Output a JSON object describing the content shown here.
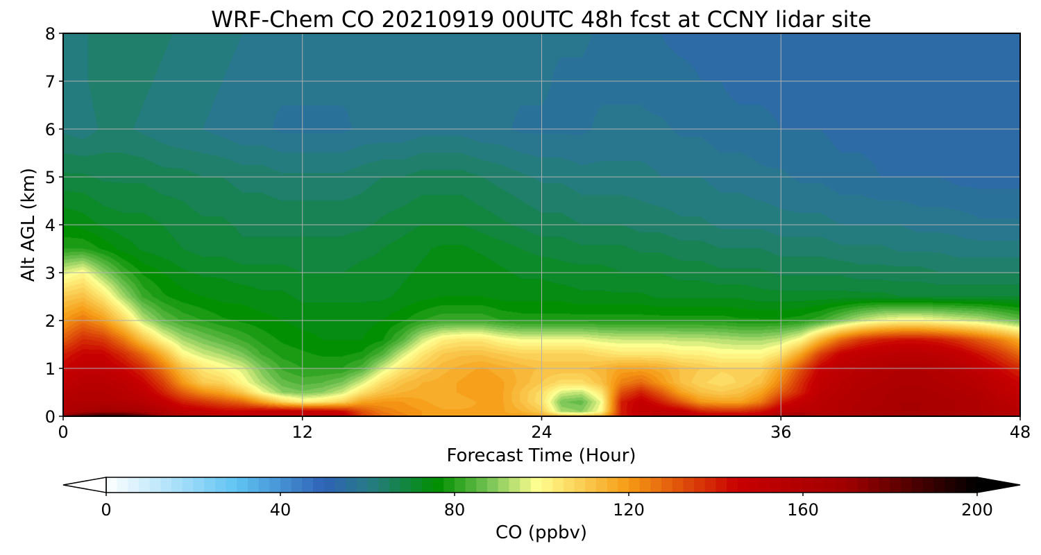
{
  "chart_data": {
    "type": "heatmap",
    "title": "WRF-Chem CO  20210919 00UTC 48h fcst at CCNY lidar site",
    "xlabel": "Forecast Time (Hour)",
    "ylabel": "Alt AGL (km)",
    "xlim": [
      0,
      48
    ],
    "ylim": [
      0,
      8
    ],
    "xticks": [
      0,
      12,
      24,
      36,
      48
    ],
    "yticks": [
      0,
      1,
      2,
      3,
      4,
      5,
      6,
      7,
      8
    ],
    "grid": true,
    "colorbar": {
      "label": "CO  (ppbv)",
      "range": [
        0,
        200
      ],
      "ticks": [
        0,
        40,
        80,
        120,
        160,
        200
      ],
      "extend": "both",
      "levels": 80,
      "colors": [
        {
          "v": 0,
          "c": "#ffffff"
        },
        {
          "v": 30,
          "c": "#5fc3f3"
        },
        {
          "v": 50,
          "c": "#2e62b5"
        },
        {
          "v": 60,
          "c": "#287a8a"
        },
        {
          "v": 76,
          "c": "#008f00"
        },
        {
          "v": 88,
          "c": "#77c455"
        },
        {
          "v": 99,
          "c": "#ffff90"
        },
        {
          "v": 120,
          "c": "#f59a14"
        },
        {
          "v": 145,
          "c": "#c80000"
        },
        {
          "v": 170,
          "c": "#a00000"
        },
        {
          "v": 200,
          "c": "#000000"
        }
      ]
    },
    "z_unit": "ppbv",
    "x": [
      0,
      1,
      2,
      3,
      4,
      5,
      6,
      7,
      8,
      9,
      10,
      11,
      12,
      13,
      14,
      15,
      16,
      17,
      18,
      19,
      20,
      21,
      22,
      23,
      24,
      25,
      26,
      27,
      28,
      29,
      30,
      31,
      32,
      33,
      34,
      35,
      36,
      37,
      38,
      39,
      40,
      41,
      42,
      43,
      44,
      45,
      46,
      47,
      48
    ],
    "y": [
      0,
      0.1,
      0.3,
      0.5,
      0.7,
      1.0,
      1.3,
      1.6,
      2.0,
      2.5,
      3.0,
      3.5,
      4.0,
      5.0,
      6.0,
      7.0,
      8.0
    ],
    "z": [
      [
        175,
        188,
        195,
        193,
        185,
        170,
        160,
        160,
        150,
        148,
        150,
        150,
        150,
        150,
        150,
        135,
        128,
        124,
        120,
        120,
        120,
        118,
        118,
        120,
        118,
        113,
        112,
        115,
        140,
        148,
        152,
        152,
        148,
        148,
        148,
        150,
        170,
        175,
        160,
        162,
        165,
        168,
        170,
        170,
        168,
        166,
        162,
        160,
        158
      ],
      [
        160,
        165,
        168,
        168,
        165,
        158,
        150,
        148,
        145,
        145,
        148,
        148,
        148,
        146,
        144,
        132,
        125,
        122,
        120,
        118,
        118,
        118,
        118,
        115,
        110,
        92,
        90,
        100,
        140,
        150,
        150,
        148,
        140,
        138,
        138,
        142,
        150,
        155,
        155,
        158,
        162,
        164,
        165,
        165,
        164,
        162,
        160,
        158,
        156
      ],
      [
        158,
        160,
        160,
        158,
        155,
        148,
        140,
        136,
        132,
        128,
        118,
        108,
        102,
        104,
        108,
        118,
        120,
        120,
        118,
        116,
        116,
        118,
        118,
        112,
        105,
        88,
        86,
        98,
        140,
        148,
        140,
        130,
        120,
        118,
        118,
        125,
        140,
        148,
        155,
        158,
        160,
        162,
        165,
        165,
        164,
        162,
        160,
        156,
        152
      ],
      [
        155,
        158,
        158,
        155,
        150,
        140,
        130,
        122,
        118,
        110,
        98,
        90,
        88,
        90,
        95,
        105,
        112,
        115,
        116,
        116,
        118,
        120,
        118,
        112,
        106,
        96,
        94,
        104,
        132,
        140,
        130,
        118,
        112,
        110,
        112,
        118,
        130,
        140,
        152,
        156,
        160,
        162,
        164,
        164,
        162,
        160,
        158,
        152,
        148
      ],
      [
        150,
        155,
        155,
        152,
        145,
        135,
        120,
        110,
        108,
        100,
        92,
        86,
        84,
        85,
        88,
        96,
        106,
        112,
        115,
        116,
        118,
        120,
        118,
        114,
        110,
        106,
        106,
        112,
        124,
        128,
        120,
        112,
        108,
        106,
        108,
        112,
        124,
        138,
        150,
        155,
        158,
        160,
        162,
        162,
        160,
        158,
        155,
        150,
        145
      ],
      [
        145,
        150,
        150,
        145,
        138,
        126,
        112,
        104,
        100,
        96,
        88,
        82,
        80,
        80,
        80,
        84,
        95,
        104,
        110,
        114,
        116,
        118,
        116,
        114,
        112,
        112,
        112,
        114,
        118,
        118,
        116,
        112,
        110,
        108,
        108,
        108,
        118,
        132,
        146,
        152,
        156,
        158,
        160,
        160,
        158,
        155,
        150,
        144,
        138
      ],
      [
        140,
        145,
        145,
        138,
        128,
        115,
        100,
        95,
        92,
        88,
        82,
        79,
        78,
        77,
        77,
        78,
        84,
        95,
        104,
        110,
        112,
        112,
        110,
        108,
        108,
        108,
        108,
        106,
        104,
        104,
        104,
        102,
        102,
        100,
        100,
        100,
        105,
        118,
        135,
        146,
        150,
        152,
        154,
        154,
        152,
        148,
        142,
        136,
        128
      ],
      [
        130,
        138,
        136,
        126,
        112,
        100,
        92,
        88,
        85,
        82,
        79,
        77,
        76,
        75,
        75,
        75,
        77,
        84,
        95,
        102,
        104,
        104,
        100,
        98,
        98,
        98,
        98,
        96,
        95,
        95,
        95,
        94,
        94,
        93,
        92,
        92,
        94,
        100,
        115,
        128,
        136,
        140,
        142,
        142,
        140,
        136,
        130,
        124,
        116
      ],
      [
        120,
        126,
        120,
        108,
        94,
        86,
        82,
        80,
        78,
        77,
        76,
        75,
        74,
        74,
        74,
        74,
        75,
        77,
        80,
        82,
        82,
        82,
        80,
        79,
        79,
        79,
        79,
        79,
        79,
        79,
        79,
        79,
        79,
        79,
        78,
        78,
        78,
        79,
        82,
        88,
        94,
        98,
        100,
        100,
        98,
        96,
        94,
        90,
        86
      ],
      [
        110,
        112,
        104,
        92,
        82,
        78,
        76,
        75,
        74,
        74,
        73,
        73,
        72,
        72,
        72,
        72,
        72,
        73,
        74,
        75,
        75,
        75,
        74,
        74,
        74,
        74,
        73,
        73,
        73,
        73,
        72,
        72,
        72,
        72,
        72,
        71,
        71,
        71,
        71,
        71,
        71,
        71,
        70,
        70,
        70,
        70,
        70,
        70,
        70
      ],
      [
        96,
        100,
        90,
        82,
        77,
        75,
        73,
        72,
        72,
        71,
        71,
        71,
        70,
        70,
        70,
        71,
        71,
        72,
        73,
        74,
        74,
        74,
        73,
        72,
        72,
        71,
        71,
        71,
        70,
        70,
        70,
        69,
        69,
        68,
        68,
        68,
        67,
        67,
        67,
        67,
        66,
        66,
        66,
        66,
        65,
        65,
        65,
        65,
        65
      ],
      [
        80,
        80,
        77,
        74,
        72,
        71,
        70,
        69,
        69,
        68,
        68,
        68,
        68,
        68,
        68,
        69,
        70,
        71,
        72,
        73,
        73,
        72,
        71,
        70,
        69,
        69,
        68,
        68,
        68,
        67,
        67,
        66,
        66,
        65,
        65,
        65,
        64,
        64,
        64,
        63,
        63,
        63,
        62,
        62,
        62,
        61,
        61,
        61,
        61
      ],
      [
        75,
        74,
        72,
        71,
        71,
        70,
        69,
        68,
        68,
        67,
        67,
        67,
        67,
        67,
        67,
        67,
        68,
        69,
        70,
        70,
        70,
        69,
        68,
        67,
        66,
        66,
        65,
        65,
        65,
        64,
        64,
        63,
        63,
        62,
        62,
        62,
        61,
        61,
        61,
        60,
        60,
        60,
        60,
        59,
        59,
        59,
        58,
        58,
        58
      ],
      [
        68,
        68,
        67,
        67,
        67,
        66,
        66,
        65,
        65,
        64,
        64,
        63,
        63,
        63,
        63,
        64,
        65,
        65,
        66,
        66,
        66,
        65,
        64,
        63,
        62,
        62,
        61,
        61,
        61,
        61,
        60,
        60,
        60,
        59,
        59,
        58,
        58,
        57,
        57,
        56,
        56,
        55,
        55,
        55,
        55,
        54,
        54,
        54,
        54
      ],
      [
        62,
        61,
        63,
        63,
        62,
        61,
        60,
        60,
        59,
        58,
        58,
        57,
        57,
        57,
        57,
        58,
        58,
        58,
        59,
        59,
        59,
        58,
        58,
        57,
        57,
        57,
        57,
        58,
        58,
        58,
        58,
        57,
        57,
        56,
        56,
        56,
        55,
        55,
        55,
        54,
        54,
        54,
        54,
        53,
        53,
        53,
        53,
        53,
        53
      ],
      [
        61,
        62,
        64,
        64,
        63,
        62,
        61,
        61,
        60,
        59,
        58,
        58,
        58,
        58,
        58,
        58,
        58,
        58,
        58,
        59,
        59,
        59,
        58,
        58,
        58,
        57,
        57,
        57,
        57,
        57,
        56,
        56,
        55,
        55,
        54,
        54,
        54,
        54,
        54,
        54,
        53,
        53,
        53,
        53,
        53,
        53,
        53,
        53,
        53
      ],
      [
        61,
        62,
        64,
        65,
        64,
        63,
        62,
        62,
        61,
        60,
        60,
        59,
        59,
        59,
        59,
        59,
        59,
        59,
        59,
        59,
        59,
        59,
        59,
        59,
        58,
        58,
        58,
        57,
        56,
        55,
        55,
        54,
        54,
        54,
        54,
        53,
        53,
        53,
        53,
        53,
        53,
        53,
        53,
        53,
        53,
        53,
        53,
        53,
        53
      ]
    ]
  }
}
